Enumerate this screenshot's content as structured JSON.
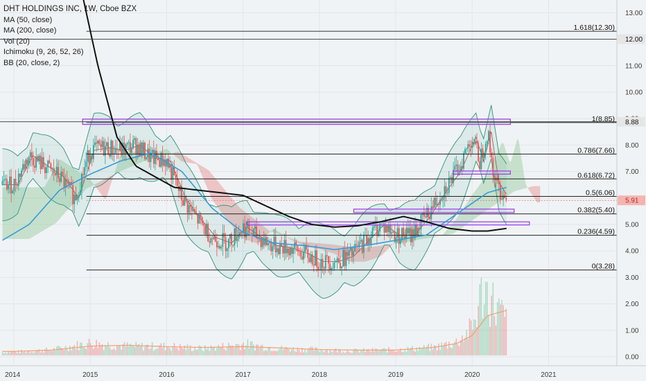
{
  "header": {
    "title": "DHT HOLDINGS INC, 1W, Cboe BZX"
  },
  "indicators": [
    "MA (50, close)",
    "MA (200, close)",
    "Vol (20)",
    "Ichimoku (9, 26, 52, 26)",
    "BB (20, close, 2)"
  ],
  "price_axis": {
    "ticks": [
      "13.00",
      "12.00",
      "11.00",
      "10.00",
      "9.00",
      "8.00",
      "7.00",
      "6.00",
      "5.00",
      "4.00",
      "3.00",
      "2.00",
      "1.00",
      "0.00"
    ],
    "labels": {
      "price_12": "12.00",
      "price_888": "8.88",
      "last": "5.91"
    }
  },
  "time_axis": {
    "ticks": [
      "2014",
      "2015",
      "2016",
      "2017",
      "2018",
      "2019",
      "2020",
      "2021"
    ]
  },
  "fib_levels": [
    {
      "label": "1.618(12.30)",
      "value": 12.3
    },
    {
      "label": "1(8.85)",
      "value": 8.85
    },
    {
      "label": "0.786(7.66)",
      "value": 7.66
    },
    {
      "label": "0.618(6.72)",
      "value": 6.72
    },
    {
      "label": "0.5(6.06)",
      "value": 6.06
    },
    {
      "label": "0.382(5.40)",
      "value": 5.4
    },
    {
      "label": "0.236(4.59)",
      "value": 4.59
    },
    {
      "label": "0(3.28)",
      "value": 3.28
    }
  ],
  "chart_data": {
    "type": "line",
    "title": "DHT HOLDINGS INC, 1W, Cboe BZX",
    "ylim": [
      -0.2,
      13.2
    ],
    "xlim": [
      2013.85,
      2021.85
    ],
    "last_price": 5.91,
    "horizontal_lines": [
      12.0,
      8.88
    ],
    "close": {
      "x": [
        2014.0,
        2014.2,
        2014.4,
        2014.6,
        2014.8,
        2015.0,
        2015.2,
        2015.4,
        2015.6,
        2015.8,
        2016.0,
        2016.2,
        2016.4,
        2016.6,
        2016.8,
        2017.0,
        2017.2,
        2017.4,
        2017.6,
        2017.8,
        2018.0,
        2018.2,
        2018.4,
        2018.6,
        2018.8,
        2019.0,
        2019.2,
        2019.4,
        2019.6,
        2019.8,
        2020.0,
        2020.1,
        2020.2,
        2020.3,
        2020.45
      ],
      "y": [
        6.5,
        7.6,
        7.2,
        6.8,
        6.0,
        7.8,
        7.9,
        7.8,
        8.0,
        7.5,
        7.4,
        6.0,
        5.2,
        4.5,
        4.3,
        4.9,
        4.5,
        4.2,
        4.1,
        3.9,
        3.6,
        3.6,
        3.8,
        4.4,
        5.0,
        4.6,
        4.6,
        5.3,
        6.2,
        7.0,
        8.3,
        7.4,
        8.5,
        6.6,
        5.91
      ]
    },
    "ma50": {
      "x": [
        2013.85,
        2014.2,
        2014.6,
        2015.0,
        2015.4,
        2015.8,
        2016.2,
        2016.6,
        2017.0,
        2017.4,
        2017.8,
        2018.2,
        2018.6,
        2019.0,
        2019.4,
        2019.8,
        2020.2,
        2020.45
      ],
      "y": [
        4.4,
        5.0,
        6.3,
        6.9,
        7.4,
        7.7,
        7.0,
        5.6,
        4.7,
        4.3,
        4.2,
        4.05,
        4.2,
        4.4,
        4.6,
        5.4,
        6.2,
        6.4
      ]
    },
    "ma200": {
      "x": [
        2014.85,
        2015.1,
        2015.35,
        2015.6,
        2015.85,
        2016.1,
        2016.4,
        2016.7,
        2017.0,
        2017.3,
        2017.6,
        2017.9,
        2018.2,
        2018.5,
        2018.8,
        2019.1,
        2019.4,
        2019.7,
        2020.0,
        2020.2,
        2020.45
      ],
      "y": [
        14.3,
        11.0,
        8.3,
        7.2,
        6.8,
        6.4,
        6.3,
        6.2,
        6.1,
        5.7,
        5.3,
        5.0,
        4.9,
        4.95,
        5.1,
        5.3,
        5.1,
        4.85,
        4.75,
        4.75,
        4.85
      ]
    },
    "volume": {
      "x": [
        2014.0,
        2014.5,
        2015.0,
        2015.5,
        2016.0,
        2016.5,
        2017.0,
        2017.5,
        2018.0,
        2018.5,
        2019.0,
        2019.5,
        2019.8,
        2020.0,
        2020.15,
        2020.3,
        2020.45
      ],
      "y": [
        0.15,
        0.25,
        0.55,
        0.4,
        0.4,
        0.3,
        0.5,
        0.3,
        0.25,
        0.2,
        0.25,
        0.35,
        0.6,
        1.2,
        3.0,
        2.2,
        1.5
      ]
    },
    "volume_ma": {
      "x": [
        2014.0,
        2014.5,
        2015.0,
        2015.5,
        2016.0,
        2016.5,
        2017.0,
        2017.5,
        2018.0,
        2018.5,
        2019.0,
        2019.5,
        2019.8,
        2020.0,
        2020.2,
        2020.45
      ],
      "y": [
        0.15,
        0.2,
        0.35,
        0.38,
        0.33,
        0.3,
        0.33,
        0.28,
        0.22,
        0.2,
        0.2,
        0.3,
        0.45,
        0.75,
        1.5,
        1.7
      ]
    },
    "rectangles": [
      {
        "x0": 2014.9,
        "x1": 2020.5,
        "y0": 8.78,
        "y1": 8.98
      },
      {
        "x0": 2019.75,
        "x1": 2020.5,
        "y0": 6.9,
        "y1": 7.02
      },
      {
        "x0": 2018.45,
        "x1": 2020.55,
        "y0": 5.45,
        "y1": 5.58
      },
      {
        "x0": 2017.05,
        "x1": 2020.75,
        "y0": 4.98,
        "y1": 5.1
      }
    ]
  }
}
